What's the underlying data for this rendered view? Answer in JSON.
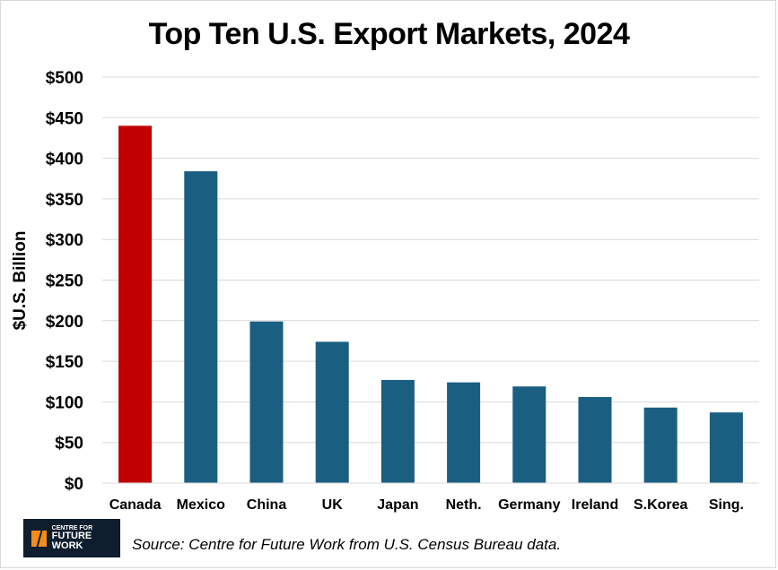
{
  "chart_data": {
    "type": "bar",
    "title": "Top Ten U.S. Export Markets, 2024",
    "xlabel": "",
    "ylabel": "$U.S. Billion",
    "ylim": [
      0,
      500
    ],
    "yticks": [
      "$0",
      "$50",
      "$100",
      "$150",
      "$200",
      "$250",
      "$300",
      "$350",
      "$400",
      "$450",
      "$500"
    ],
    "grid": true,
    "categories": [
      "Canada",
      "Mexico",
      "China",
      "UK",
      "Japan",
      "Neth.",
      "Germany",
      "Ireland",
      "S.Korea",
      "Sing."
    ],
    "values": [
      440,
      384,
      199,
      174,
      127,
      124,
      119,
      106,
      93,
      87
    ],
    "colors": [
      "#c00000",
      "#1a5f82",
      "#1a5f82",
      "#1a5f82",
      "#1a5f82",
      "#1a5f82",
      "#1a5f82",
      "#1a5f82",
      "#1a5f82",
      "#1a5f82"
    ]
  },
  "logo": {
    "line1": "CENTRE FOR",
    "line2": "FUTURE WORK"
  },
  "source": "Source: Centre for Future Work from U.S. Census Bureau data."
}
